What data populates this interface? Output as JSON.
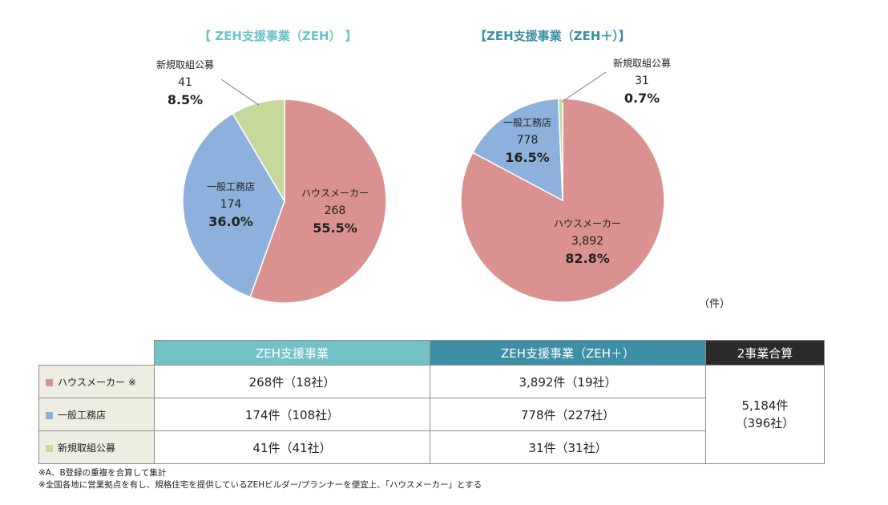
{
  "chart_data": [
    {
      "type": "pie",
      "title": "【 ZEH支援事業（ZEH） 】",
      "slices": [
        {
          "label": "ハウスメーカー",
          "value": 268,
          "percent": "55.5%",
          "color": "#d99290"
        },
        {
          "label": "一般工務店",
          "value": 174,
          "percent": "36.0%",
          "color": "#8db1dc"
        },
        {
          "label": "新規取組公募",
          "value": 41,
          "percent": "8.5%",
          "color": "#c4d99a"
        }
      ]
    },
    {
      "type": "pie",
      "title": "【ZEH支援事業（ZEH＋）】",
      "slices": [
        {
          "label": "ハウスメーカー",
          "value": "3,892",
          "raw": 3892,
          "percent": "82.8%",
          "color": "#d99290"
        },
        {
          "label": "一般工務店",
          "value": 778,
          "percent": "16.5%",
          "color": "#8db1dc"
        },
        {
          "label": "新規取組公募",
          "value": 31,
          "percent": "0.7%",
          "color": "#c4d99a"
        }
      ]
    }
  ],
  "unit": "（件）",
  "table": {
    "headers": [
      "ZEH支援事業",
      "ZEH支援事業（ZEH＋）",
      "2事業合算"
    ],
    "rows": [
      {
        "label": "ハウスメーカー ※",
        "color": "#d99290",
        "zeh": "268件（18社）",
        "zehplus": "3,892件（19社）"
      },
      {
        "label": "一般工務店",
        "color": "#8db1dc",
        "zeh": "174件（108社）",
        "zehplus": "778件（227社）"
      },
      {
        "label": "新規取組公募",
        "color": "#c4d99a",
        "zeh": "41件（41社）",
        "zehplus": "31件（31社）"
      }
    ],
    "total_line1": "5,184件",
    "total_line2": "（396社）"
  },
  "notes": [
    "※A、B登録の重複を合算して集計",
    "※全国各地に営業拠点を有し、規格住宅を提供しているZEHビルダー/プランナーを便宜上、「ハウスメーカー」とする"
  ]
}
